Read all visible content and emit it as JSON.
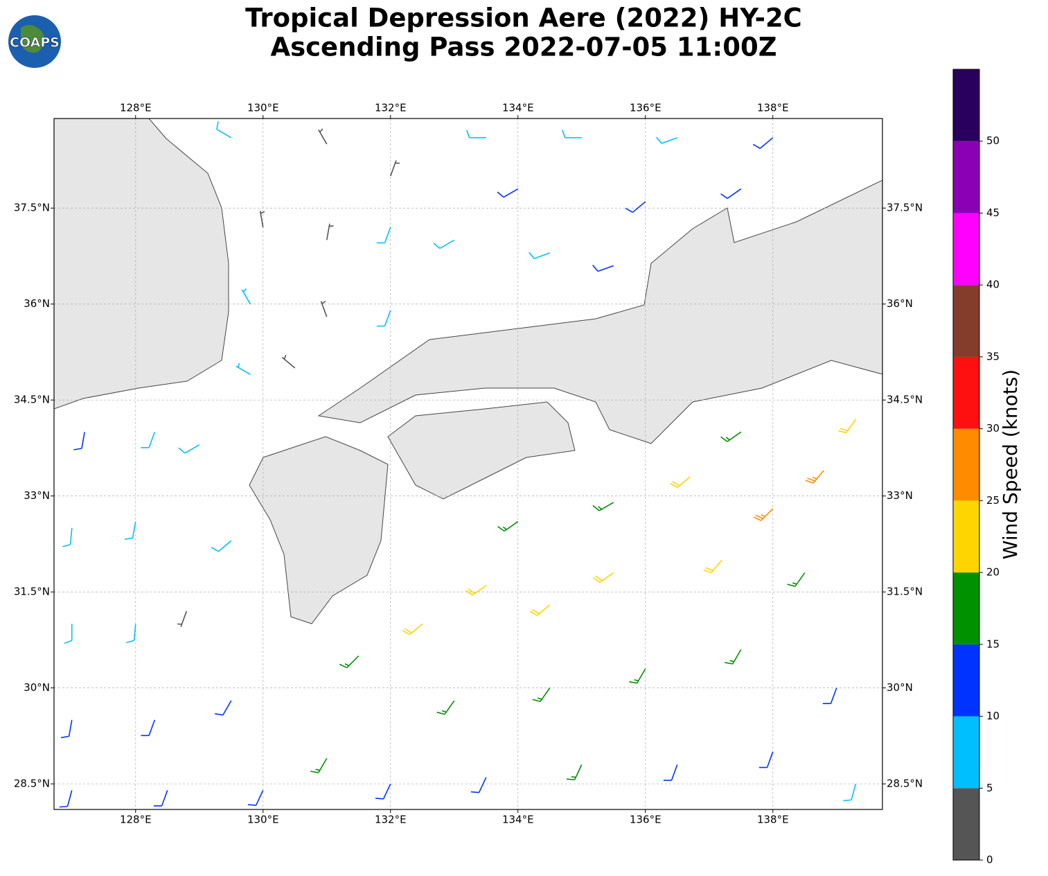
{
  "chart_data": {
    "type": "wind-barbs",
    "title": "Tropical Depression Aere (2022) HY-2C",
    "subtitle": "Ascending Pass 2022-07-05 11:00Z",
    "logo": "COAPS",
    "colorbar_label": "Wind Speed (knots)",
    "xlim": [
      126.72,
      139.72
    ],
    "ylim": [
      28.1,
      38.9
    ],
    "xticks": [
      {
        "value": 128,
        "label": "128°E"
      },
      {
        "value": 130,
        "label": "130°E"
      },
      {
        "value": 132,
        "label": "132°E"
      },
      {
        "value": 134,
        "label": "134°E"
      },
      {
        "value": 136,
        "label": "136°E"
      },
      {
        "value": 138,
        "label": "138°E"
      }
    ],
    "yticks": [
      {
        "value": 28.5,
        "label": "28.5°N"
      },
      {
        "value": 30,
        "label": "30°N"
      },
      {
        "value": 31.5,
        "label": "31.5°N"
      },
      {
        "value": 33,
        "label": "33°N"
      },
      {
        "value": 34.5,
        "label": "34.5°N"
      },
      {
        "value": 36,
        "label": "36°N"
      },
      {
        "value": 37.5,
        "label": "37.5°N"
      }
    ],
    "grid": true,
    "colorbar": {
      "lim": [
        0,
        55
      ],
      "ticks": [
        0,
        5,
        10,
        15,
        20,
        25,
        30,
        35,
        40,
        45,
        50
      ],
      "colors": [
        "#555555",
        "#00bfff",
        "#0033ff",
        "#009100",
        "#ffd500",
        "#ff8c00",
        "#ff1010",
        "#843c2b",
        "#ff00ff",
        "#8b00b5",
        "#2a005e"
      ]
    },
    "barbs": [
      {
        "lon": 129.5,
        "lat": 38.6,
        "speed": 8,
        "dir": 300
      },
      {
        "lon": 131.0,
        "lat": 38.5,
        "speed": 3,
        "dir": 330
      },
      {
        "lon": 132.0,
        "lat": 38.0,
        "speed": 4,
        "dir": 20
      },
      {
        "lon": 133.5,
        "lat": 38.6,
        "speed": 8,
        "dir": 270
      },
      {
        "lon": 135.0,
        "lat": 38.6,
        "speed": 8,
        "dir": 270
      },
      {
        "lon": 136.5,
        "lat": 38.6,
        "speed": 8,
        "dir": 250
      },
      {
        "lon": 138.0,
        "lat": 38.6,
        "speed": 12,
        "dir": 230
      },
      {
        "lon": 134.0,
        "lat": 37.8,
        "speed": 12,
        "dir": 240
      },
      {
        "lon": 136.0,
        "lat": 37.6,
        "speed": 12,
        "dir": 230
      },
      {
        "lon": 137.5,
        "lat": 37.8,
        "speed": 12,
        "dir": 235
      },
      {
        "lon": 130.0,
        "lat": 37.2,
        "speed": 3,
        "dir": 350
      },
      {
        "lon": 131.0,
        "lat": 37.0,
        "speed": 4,
        "dir": 10
      },
      {
        "lon": 132.0,
        "lat": 37.2,
        "speed": 8,
        "dir": 200
      },
      {
        "lon": 133.0,
        "lat": 37.0,
        "speed": 8,
        "dir": 240
      },
      {
        "lon": 134.5,
        "lat": 36.8,
        "speed": 8,
        "dir": 250
      },
      {
        "lon": 135.5,
        "lat": 36.6,
        "speed": 12,
        "dir": 250
      },
      {
        "lon": 129.8,
        "lat": 36.0,
        "speed": 7,
        "dir": 330
      },
      {
        "lon": 131.0,
        "lat": 35.8,
        "speed": 4,
        "dir": 340
      },
      {
        "lon": 132.0,
        "lat": 35.9,
        "speed": 8,
        "dir": 200
      },
      {
        "lon": 129.8,
        "lat": 34.9,
        "speed": 7,
        "dir": 300
      },
      {
        "lon": 130.5,
        "lat": 35.0,
        "speed": 3,
        "dir": 310
      },
      {
        "lon": 127.2,
        "lat": 34.0,
        "speed": 12,
        "dir": 190
      },
      {
        "lon": 128.3,
        "lat": 34.0,
        "speed": 8,
        "dir": 200
      },
      {
        "lon": 129.0,
        "lat": 33.8,
        "speed": 8,
        "dir": 240
      },
      {
        "lon": 127.0,
        "lat": 32.5,
        "speed": 8,
        "dir": 185
      },
      {
        "lon": 128.0,
        "lat": 32.6,
        "speed": 8,
        "dir": 190
      },
      {
        "lon": 129.5,
        "lat": 32.3,
        "speed": 8,
        "dir": 230
      },
      {
        "lon": 127.0,
        "lat": 31.0,
        "speed": 8,
        "dir": 180
      },
      {
        "lon": 128.0,
        "lat": 31.0,
        "speed": 8,
        "dir": 185
      },
      {
        "lon": 128.8,
        "lat": 31.2,
        "speed": 3,
        "dir": 200
      },
      {
        "lon": 127.0,
        "lat": 29.5,
        "speed": 12,
        "dir": 190
      },
      {
        "lon": 128.3,
        "lat": 29.5,
        "speed": 12,
        "dir": 200
      },
      {
        "lon": 129.5,
        "lat": 29.8,
        "speed": 12,
        "dir": 210
      },
      {
        "lon": 127.0,
        "lat": 28.4,
        "speed": 12,
        "dir": 195
      },
      {
        "lon": 128.5,
        "lat": 28.4,
        "speed": 12,
        "dir": 200
      },
      {
        "lon": 130.0,
        "lat": 28.4,
        "speed": 12,
        "dir": 205
      },
      {
        "lon": 131.0,
        "lat": 28.9,
        "speed": 17,
        "dir": 210
      },
      {
        "lon": 131.5,
        "lat": 30.5,
        "speed": 17,
        "dir": 225
      },
      {
        "lon": 132.5,
        "lat": 31.0,
        "speed": 22,
        "dir": 230
      },
      {
        "lon": 133.5,
        "lat": 31.6,
        "speed": 22,
        "dir": 235
      },
      {
        "lon": 134.5,
        "lat": 31.3,
        "speed": 22,
        "dir": 230
      },
      {
        "lon": 135.5,
        "lat": 31.8,
        "speed": 22,
        "dir": 235
      },
      {
        "lon": 134.0,
        "lat": 32.6,
        "speed": 17,
        "dir": 235
      },
      {
        "lon": 135.5,
        "lat": 32.9,
        "speed": 17,
        "dir": 240
      },
      {
        "lon": 136.7,
        "lat": 33.3,
        "speed": 22,
        "dir": 230
      },
      {
        "lon": 137.5,
        "lat": 34.0,
        "speed": 17,
        "dir": 235
      },
      {
        "lon": 138.0,
        "lat": 32.8,
        "speed": 27,
        "dir": 225
      },
      {
        "lon": 138.8,
        "lat": 33.4,
        "speed": 27,
        "dir": 220
      },
      {
        "lon": 139.3,
        "lat": 34.2,
        "speed": 22,
        "dir": 215
      },
      {
        "lon": 137.2,
        "lat": 32.0,
        "speed": 22,
        "dir": 220
      },
      {
        "lon": 138.5,
        "lat": 31.8,
        "speed": 17,
        "dir": 215
      },
      {
        "lon": 133.0,
        "lat": 29.8,
        "speed": 17,
        "dir": 215
      },
      {
        "lon": 134.5,
        "lat": 30.0,
        "speed": 17,
        "dir": 215
      },
      {
        "lon": 136.0,
        "lat": 30.3,
        "speed": 17,
        "dir": 210
      },
      {
        "lon": 137.5,
        "lat": 30.6,
        "speed": 17,
        "dir": 210
      },
      {
        "lon": 132.0,
        "lat": 28.5,
        "speed": 12,
        "dir": 205
      },
      {
        "lon": 133.5,
        "lat": 28.6,
        "speed": 12,
        "dir": 205
      },
      {
        "lon": 135.0,
        "lat": 28.8,
        "speed": 17,
        "dir": 205
      },
      {
        "lon": 136.5,
        "lat": 28.8,
        "speed": 12,
        "dir": 200
      },
      {
        "lon": 138.0,
        "lat": 29.0,
        "speed": 12,
        "dir": 200
      },
      {
        "lon": 139.0,
        "lat": 30.0,
        "speed": 12,
        "dir": 200
      },
      {
        "lon": 139.3,
        "lat": 28.5,
        "speed": 8,
        "dir": 195
      }
    ]
  }
}
